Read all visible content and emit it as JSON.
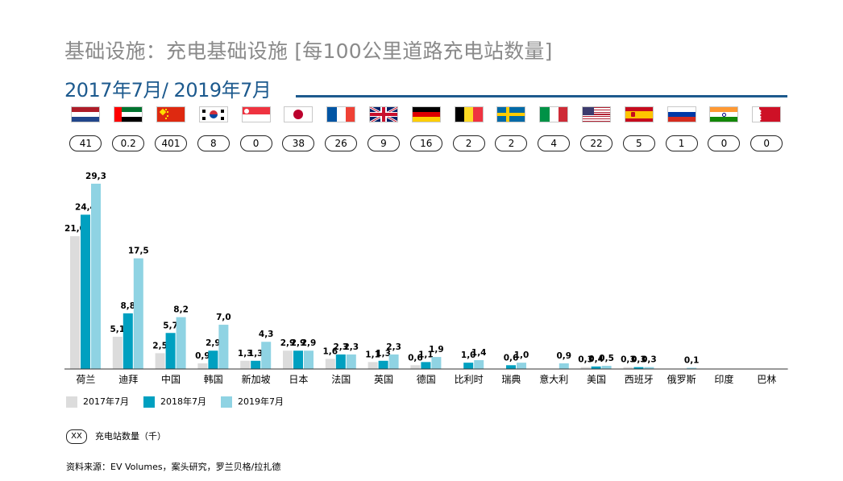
{
  "title": "基础设施：充电基础设施 [每100公里道路充电站数量]",
  "period": "2017年7月/ 2019年7月",
  "flags": [
    {
      "name": "netherlands-flag-icon",
      "colors": [
        "#ae1c28",
        "#ffffff",
        "#21468b"
      ],
      "style": "h3"
    },
    {
      "name": "uae-flag-icon",
      "colors": [
        "#00732f",
        "#ffffff",
        "#000000",
        "#ff0000"
      ],
      "style": "uae"
    },
    {
      "name": "china-flag-icon",
      "colors": [
        "#de2910",
        "#ffde00"
      ],
      "style": "china"
    },
    {
      "name": "south-korea-flag-icon",
      "colors": [
        "#ffffff",
        "#cd2e3a",
        "#0047a0",
        "#000000"
      ],
      "style": "korea"
    },
    {
      "name": "singapore-flag-icon",
      "colors": [
        "#ef3340",
        "#ffffff"
      ],
      "style": "h2"
    },
    {
      "name": "japan-flag-icon",
      "colors": [
        "#ffffff",
        "#bc002d"
      ],
      "style": "japan"
    },
    {
      "name": "france-flag-icon",
      "colors": [
        "#0055a4",
        "#ffffff",
        "#ef4135"
      ],
      "style": "v3"
    },
    {
      "name": "uk-flag-icon",
      "colors": [
        "#012169",
        "#ffffff",
        "#c8102e"
      ],
      "style": "uk"
    },
    {
      "name": "germany-flag-icon",
      "colors": [
        "#000000",
        "#dd0000",
        "#ffce00"
      ],
      "style": "h3"
    },
    {
      "name": "belgium-flag-icon",
      "colors": [
        "#000000",
        "#fdda24",
        "#ef3340"
      ],
      "style": "v3"
    },
    {
      "name": "sweden-flag-icon",
      "colors": [
        "#006aa7",
        "#fecc00"
      ],
      "style": "nordic"
    },
    {
      "name": "italy-flag-icon",
      "colors": [
        "#009246",
        "#ffffff",
        "#ce2b37"
      ],
      "style": "v3"
    },
    {
      "name": "usa-flag-icon",
      "colors": [
        "#b22234",
        "#ffffff",
        "#3c3b6e"
      ],
      "style": "usa"
    },
    {
      "name": "spain-flag-icon",
      "colors": [
        "#c60b1e",
        "#ffc400"
      ],
      "style": "spain"
    },
    {
      "name": "russia-flag-icon",
      "colors": [
        "#ffffff",
        "#0039a6",
        "#d52b1e"
      ],
      "style": "h3"
    },
    {
      "name": "india-flag-icon",
      "colors": [
        "#ff9933",
        "#ffffff",
        "#138808",
        "#000080"
      ],
      "style": "india"
    },
    {
      "name": "bahrain-flag-icon",
      "colors": [
        "#ffffff",
        "#ce1126"
      ],
      "style": "bahrain"
    }
  ],
  "station_counts": [
    "41",
    "0.2",
    "401",
    "8",
    "0",
    "38",
    "26",
    "9",
    "16",
    "2",
    "2",
    "4",
    "22",
    "5",
    "1",
    "0",
    "0"
  ],
  "chart_data": {
    "type": "bar",
    "categories": [
      "荷兰",
      "迪拜",
      "中国",
      "韩国",
      "新加坡",
      "日本",
      "法国",
      "英国",
      "德国",
      "比利时",
      "瑞典",
      "意大利",
      "美国",
      "西班牙",
      "俄罗斯",
      "印度",
      "巴林"
    ],
    "series": [
      {
        "name": "2017年7月",
        "color": "#dcdcdc",
        "values": [
          21.0,
          5.1,
          2.5,
          0.9,
          1.3,
          2.9,
          1.6,
          1.1,
          0.6,
          null,
          null,
          null,
          0.3,
          0.3,
          null,
          null,
          null
        ],
        "labels": [
          "21,0",
          "5,1",
          "2,5",
          "0,9",
          "1,3",
          "2,9",
          "1,6",
          "1,1",
          "0,6",
          "",
          "",
          "",
          "0,3",
          "0,3",
          "",
          "",
          ""
        ]
      },
      {
        "name": "2018年7月",
        "color": "#00a0c0",
        "values": [
          24.4,
          8.8,
          5.7,
          2.9,
          1.3,
          2.9,
          2.3,
          1.3,
          1.1,
          1.0,
          0.6,
          null,
          0.4,
          0.3,
          null,
          null,
          null
        ],
        "labels": [
          "24,4",
          "8,8",
          "5,7",
          "2,9",
          "1,3",
          "2,9",
          "2,3",
          "1,3",
          "1,1",
          "1,0",
          "0,6",
          "",
          "0,4",
          "0,3",
          "",
          "",
          ""
        ]
      },
      {
        "name": "2019年7月",
        "color": "#8fd3e3",
        "values": [
          29.3,
          17.5,
          8.2,
          7.0,
          4.3,
          2.9,
          2.3,
          2.3,
          1.9,
          1.4,
          1.0,
          0.9,
          0.5,
          0.3,
          0.1,
          null,
          null
        ],
        "labels": [
          "29,3",
          "17,5",
          "8,2",
          "7,0",
          "4,3",
          "2,9",
          "2,3",
          "2,3",
          "1,9",
          "1,4",
          "1,0",
          "0,9",
          "0,5",
          "0,3",
          "0,1",
          "",
          ""
        ]
      }
    ],
    "ylim": [
      0,
      30
    ],
    "grid": false,
    "legend_position": "bottom-left"
  },
  "note": {
    "pill": "XX",
    "label": "充电站数量（千）"
  },
  "source": "资料来源：EV Volumes，案头研究，罗兰贝格/拉扎德"
}
